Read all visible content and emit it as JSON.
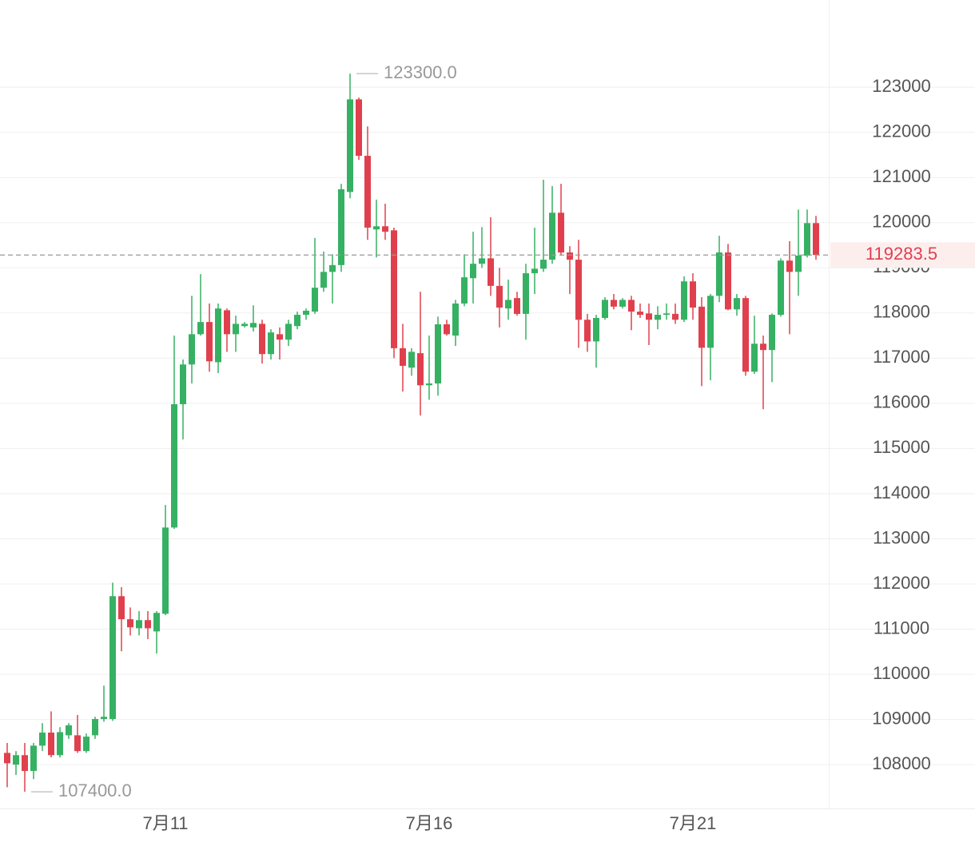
{
  "chart_data": {
    "type": "candlestick",
    "categories": [
      null,
      null,
      null,
      null,
      null,
      null,
      null,
      null,
      null,
      null,
      null,
      null,
      null,
      null,
      null,
      null,
      null,
      null,
      "7月11",
      null,
      null,
      null,
      null,
      null,
      null,
      null,
      null,
      null,
      null,
      null,
      null,
      null,
      null,
      null,
      null,
      null,
      null,
      null,
      null,
      null,
      null,
      null,
      null,
      null,
      null,
      null,
      null,
      null,
      "7月16",
      null,
      null,
      null,
      null,
      null,
      null,
      null,
      null,
      null,
      null,
      null,
      null,
      null,
      null,
      null,
      null,
      null,
      null,
      null,
      null,
      null,
      null,
      null,
      null,
      null,
      null,
      null,
      null,
      null,
      "7月21",
      null,
      null,
      null,
      null,
      null,
      null,
      null,
      null,
      null,
      null,
      null,
      null,
      null,
      null
    ],
    "open": [
      108260,
      108000,
      108210,
      107860,
      108420,
      108710,
      108210,
      108650,
      108650,
      108300,
      108650,
      109010,
      109010,
      111730,
      111220,
      111020,
      111200,
      110950,
      111340,
      113250,
      115980,
      116860,
      117530,
      117800,
      116910,
      118060,
      117530,
      117710,
      117680,
      117760,
      117090,
      117530,
      117410,
      117710,
      117960,
      118030,
      118560,
      118910,
      119060,
      120680,
      122730,
      121480,
      119850,
      119920,
      119830,
      117220,
      116790,
      117110,
      116400,
      116440,
      117750,
      117500,
      118210,
      118770,
      119090,
      119210,
      118600,
      118100,
      118330,
      117980,
      118880,
      118980,
      119180,
      120220,
      119340,
      119180,
      117850,
      117370,
      117890,
      118290,
      118140,
      118290,
      118030,
      117990,
      117850,
      117960,
      117980,
      117850,
      118700,
      118140,
      117230,
      118380,
      119340,
      118080,
      118330,
      116700,
      117320,
      117180,
      117960,
      119160,
      118910,
      119270,
      119990
    ],
    "high": [
      108480,
      108300,
      108480,
      108480,
      108920,
      109180,
      108830,
      108920,
      109100,
      108690,
      109060,
      109750,
      112030,
      111930,
      111480,
      111400,
      111400,
      111400,
      113750,
      117500,
      116970,
      118380,
      118860,
      118210,
      118210,
      118100,
      117940,
      117800,
      118170,
      117850,
      117640,
      117680,
      117850,
      118030,
      118100,
      119660,
      119360,
      119300,
      120860,
      123300,
      122770,
      122130,
      120510,
      120420,
      119890,
      117760,
      117220,
      118470,
      117500,
      117920,
      117850,
      118290,
      119300,
      119800,
      119900,
      120120,
      119000,
      118740,
      118470,
      119090,
      119890,
      120950,
      120810,
      120860,
      119480,
      119620,
      117980,
      117960,
      118350,
      118420,
      118330,
      118380,
      118210,
      118210,
      118150,
      118210,
      118210,
      118810,
      118880,
      118350,
      118420,
      119710,
      119530,
      118420,
      118380,
      117940,
      117500,
      117990,
      119210,
      119590,
      120290,
      120290,
      120150
    ],
    "low": [
      107500,
      107770,
      107400,
      107680,
      108300,
      108160,
      108160,
      108570,
      108260,
      108260,
      108570,
      108950,
      108970,
      110510,
      110860,
      110860,
      110780,
      110460,
      111310,
      113220,
      115200,
      116440,
      117500,
      116700,
      116670,
      117140,
      117140,
      117680,
      117590,
      116880,
      116970,
      116970,
      117270,
      117640,
      117850,
      117980,
      118470,
      118210,
      118910,
      120540,
      121390,
      119620,
      119230,
      119620,
      117000,
      116260,
      116610,
      115730,
      116080,
      116170,
      117500,
      117270,
      118150,
      118210,
      119000,
      118380,
      117680,
      117850,
      117940,
      117410,
      118420,
      118910,
      119090,
      119270,
      118420,
      117230,
      117140,
      116790,
      117850,
      118080,
      118100,
      117620,
      117890,
      117290,
      117640,
      117850,
      117760,
      117800,
      117850,
      116380,
      116510,
      118240,
      118060,
      117940,
      116610,
      116650,
      115870,
      116470,
      117920,
      117530,
      118380,
      119230,
      119180
    ],
    "close": [
      108030,
      108210,
      107860,
      108420,
      108710,
      108210,
      108720,
      108870,
      108300,
      108620,
      109010,
      109060,
      111730,
      111220,
      111040,
      111200,
      111020,
      111360,
      113250,
      115980,
      116860,
      117530,
      117800,
      116930,
      118100,
      117530,
      117760,
      117760,
      117780,
      117090,
      117570,
      117410,
      117760,
      117960,
      118050,
      118560,
      118910,
      119060,
      120740,
      122730,
      121480,
      119890,
      119920,
      119800,
      117220,
      116830,
      117140,
      116400,
      116440,
      117750,
      117530,
      118210,
      118790,
      119090,
      119210,
      118600,
      118120,
      118290,
      117980,
      118880,
      118980,
      119180,
      120220,
      119340,
      119180,
      117850,
      117370,
      117890,
      118290,
      118140,
      118290,
      118030,
      117960,
      117850,
      117960,
      117990,
      117850,
      118700,
      118120,
      117230,
      118380,
      119340,
      118080,
      118330,
      116700,
      117320,
      117180,
      117960,
      119160,
      118910,
      119270,
      119990,
      119283.5
    ],
    "up_color": "#36b163",
    "down_color": "#e0404d",
    "ylim": [
      107030,
      124930
    ],
    "yticks": [
      108000,
      109000,
      110000,
      111000,
      112000,
      113000,
      114000,
      115000,
      116000,
      117000,
      118000,
      119000,
      120000,
      121000,
      122000,
      123000
    ],
    "grid": true,
    "high_marker": {
      "value": 123300,
      "label": "123300.0"
    },
    "low_marker": {
      "value": 107400,
      "label": "107400.0"
    },
    "last_price": 119283.5,
    "last_price_color": "#e0404d"
  }
}
